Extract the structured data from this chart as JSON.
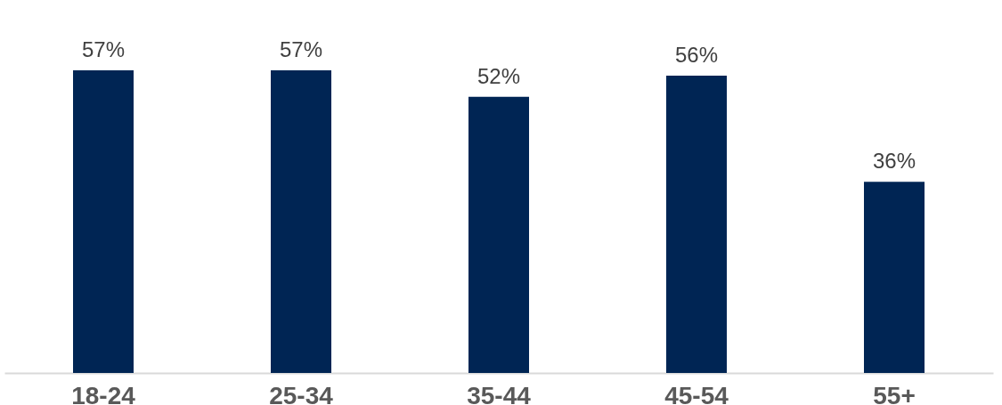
{
  "chart_data": {
    "type": "bar",
    "categories": [
      "18-24",
      "25-34",
      "35-44",
      "45-54",
      "55+"
    ],
    "values": [
      57,
      57,
      52,
      56,
      36
    ],
    "value_labels": [
      "57%",
      "57%",
      "52%",
      "56%",
      "36%"
    ],
    "color": "#002554"
  }
}
